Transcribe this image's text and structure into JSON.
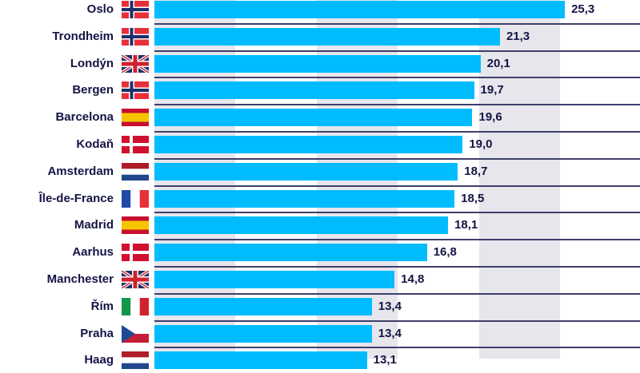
{
  "chart_data": {
    "type": "bar",
    "orientation": "horizontal",
    "categories": [
      "Oslo",
      "Trondheim",
      "Londýn",
      "Bergen",
      "Barcelona",
      "Kodaň",
      "Amsterdam",
      "Île-de-France",
      "Madrid",
      "Aarhus",
      "Manchester",
      "Řím",
      "Praha",
      "Haag"
    ],
    "flags": [
      "norway",
      "norway",
      "uk",
      "norway",
      "spain",
      "denmark",
      "netherlands",
      "france",
      "spain",
      "denmark",
      "uk",
      "italy",
      "czech",
      "netherlands"
    ],
    "values": [
      25.3,
      21.3,
      20.1,
      19.7,
      19.6,
      19.0,
      18.7,
      18.5,
      18.1,
      16.8,
      14.8,
      13.4,
      13.4,
      13.1
    ],
    "value_labels": [
      "25,3",
      "21,3",
      "20,1",
      "19,7",
      "19,6",
      "19,0",
      "18,7",
      "18,5",
      "18,1",
      "16,8",
      "14,8",
      "13,4",
      "13,4",
      "13,1"
    ],
    "xlim": [
      0,
      30
    ],
    "background_bands_every": 5,
    "grid": false,
    "bar_color": "#00bcff",
    "text_color": "#141446"
  }
}
